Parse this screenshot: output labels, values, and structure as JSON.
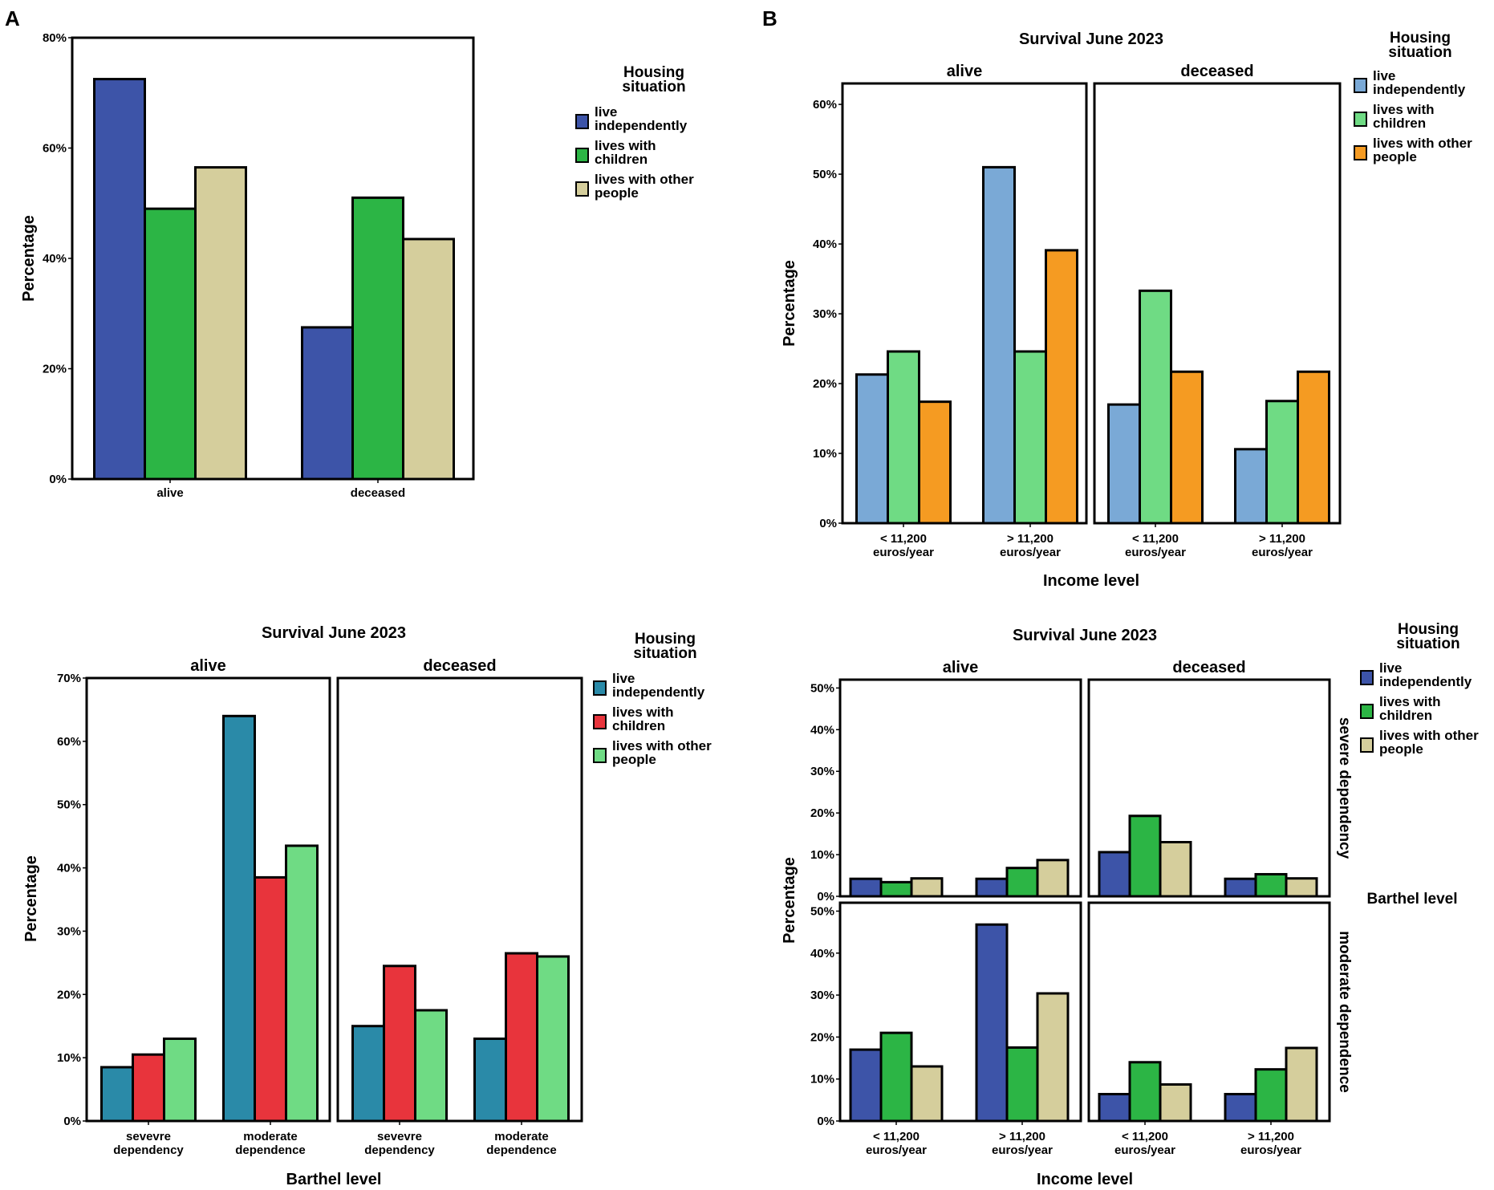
{
  "panel_labels": [
    "A",
    "B"
  ],
  "chart_data": [
    {
      "id": "A_top",
      "type": "bar",
      "title": "",
      "xlabel": "",
      "ylabel": "Percentage",
      "ylim": [
        0,
        80
      ],
      "yticks": [
        "0%",
        "20%",
        "40%",
        "60%",
        "80%"
      ],
      "facets": [
        {
          "label": "",
          "categories": [
            "alive",
            "deceased"
          ],
          "series": [
            {
              "name": "live independently",
              "values": [
                72.5,
                27.5
              ]
            },
            {
              "name": "lives with children",
              "values": [
                49,
                51
              ]
            },
            {
              "name": "lives with other people",
              "values": [
                56.5,
                43.5
              ]
            }
          ]
        }
      ],
      "legend": {
        "title": [
          "Housing",
          "situation"
        ],
        "items": [
          [
            "live",
            "independently"
          ],
          [
            "lives with",
            "children"
          ],
          [
            "lives with other",
            "people"
          ]
        ],
        "colors": [
          "#3d54a8",
          "#2cb545",
          "#d5ce9c"
        ]
      }
    },
    {
      "id": "A_bottom",
      "type": "bar",
      "title": "Survival June 2023",
      "xlabel": "Barthel level",
      "ylabel": "Percentage",
      "ylim": [
        0,
        70
      ],
      "yticks": [
        "0%",
        "10%",
        "20%",
        "30%",
        "40%",
        "50%",
        "60%",
        "70%"
      ],
      "facets": [
        {
          "label": "alive",
          "categories": [
            [
              "sevevre",
              "dependency"
            ],
            [
              "moderate",
              "dependence"
            ]
          ],
          "series": [
            {
              "name": "live independently",
              "values": [
                8.5,
                64
              ]
            },
            {
              "name": "lives with children",
              "values": [
                10.5,
                38.5
              ]
            },
            {
              "name": "lives with other people",
              "values": [
                13,
                43.5
              ]
            }
          ]
        },
        {
          "label": "deceased",
          "categories": [
            [
              "sevevre",
              "dependency"
            ],
            [
              "moderate",
              "dependence"
            ]
          ],
          "series": [
            {
              "name": "live independently",
              "values": [
                15,
                13
              ]
            },
            {
              "name": "lives with children",
              "values": [
                24.5,
                26.5
              ]
            },
            {
              "name": "lives with other people",
              "values": [
                17.5,
                26
              ]
            }
          ]
        }
      ],
      "legend": {
        "title": [
          "Housing",
          "situation"
        ],
        "items": [
          [
            "live",
            "independently"
          ],
          [
            "lives with",
            "children"
          ],
          [
            "lives with other",
            "people"
          ]
        ],
        "colors": [
          "#2a8aa8",
          "#e8343c",
          "#6fdb84"
        ]
      }
    },
    {
      "id": "B_top",
      "type": "bar",
      "title": "Survival June 2023",
      "xlabel": "Income level",
      "ylabel": "Percentage",
      "ylim": [
        0,
        63
      ],
      "yticks": [
        "0%",
        "10%",
        "20%",
        "30%",
        "40%",
        "50%",
        "60%"
      ],
      "facets": [
        {
          "label": "alive",
          "categories": [
            [
              "< 11,200",
              "euros/year"
            ],
            [
              "> 11,200",
              "euros/year"
            ]
          ],
          "series": [
            {
              "name": "live independently",
              "values": [
                21.3,
                51
              ]
            },
            {
              "name": "lives with children",
              "values": [
                24.6,
                24.6
              ]
            },
            {
              "name": "lives with other people",
              "values": [
                17.4,
                39.1
              ]
            }
          ]
        },
        {
          "label": "deceased",
          "categories": [
            [
              "< 11,200",
              "euros/year"
            ],
            [
              "> 11,200",
              "euros/year"
            ]
          ],
          "series": [
            {
              "name": "live independently",
              "values": [
                17,
                10.6
              ]
            },
            {
              "name": "lives with children",
              "values": [
                33.3,
                17.5
              ]
            },
            {
              "name": "lives with other people",
              "values": [
                21.7,
                21.7
              ]
            }
          ]
        }
      ],
      "legend": {
        "title": [
          "Housing",
          "situation"
        ],
        "items": [
          [
            "live",
            "independently"
          ],
          [
            "lives with",
            "children"
          ],
          [
            "lives with other",
            "people"
          ]
        ],
        "colors": [
          "#7aa9d6",
          "#6fdb84",
          "#f59b22"
        ]
      }
    },
    {
      "id": "B_bottom",
      "type": "bar",
      "title": "Survival June 2023",
      "xlabel": "Income level",
      "ylabel": "Percentage",
      "row_title": "Barthel level",
      "ylim": [
        0,
        52
      ],
      "yticks": [
        "0%",
        "10%",
        "20%",
        "30%",
        "40%",
        "50%"
      ],
      "col_labels": [
        "alive",
        "deceased"
      ],
      "row_labels": [
        "severe dependency",
        "moderate dependence"
      ],
      "categories": [
        [
          "< 11,200",
          "euros/year"
        ],
        [
          "> 11,200",
          "euros/year"
        ]
      ],
      "cells": [
        [
          [
            {
              "name": "live independently",
              "values": [
                4.2,
                4.2
              ]
            },
            {
              "name": "lives with children",
              "values": [
                3.4,
                6.8
              ]
            },
            {
              "name": "lives with other people",
              "values": [
                4.3,
                8.7
              ]
            }
          ],
          [
            {
              "name": "live independently",
              "values": [
                10.6,
                4.2
              ]
            },
            {
              "name": "lives with children",
              "values": [
                19.3,
                5.3
              ]
            },
            {
              "name": "lives with other people",
              "values": [
                13,
                4.3
              ]
            }
          ]
        ],
        [
          [
            {
              "name": "live independently",
              "values": [
                17,
                46.8
              ]
            },
            {
              "name": "lives with children",
              "values": [
                21,
                17.5
              ]
            },
            {
              "name": "lives with other people",
              "values": [
                13,
                30.4
              ]
            }
          ],
          [
            {
              "name": "live independently",
              "values": [
                6.4,
                6.4
              ]
            },
            {
              "name": "lives with children",
              "values": [
                14,
                12.3
              ]
            },
            {
              "name": "lives with other people",
              "values": [
                8.7,
                17.4
              ]
            }
          ]
        ]
      ],
      "legend": {
        "title": [
          "Housing",
          "situation"
        ],
        "items": [
          [
            "live",
            "independently"
          ],
          [
            "lives with",
            "children"
          ],
          [
            "lives with other",
            "people"
          ]
        ],
        "colors": [
          "#3d54a8",
          "#2cb545",
          "#d5ce9c"
        ]
      }
    }
  ]
}
